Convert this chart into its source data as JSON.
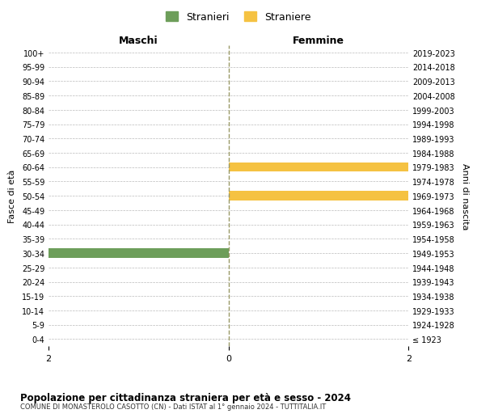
{
  "age_groups": [
    "100+",
    "95-99",
    "90-94",
    "85-89",
    "80-84",
    "75-79",
    "70-74",
    "65-69",
    "60-64",
    "55-59",
    "50-54",
    "45-49",
    "40-44",
    "35-39",
    "30-34",
    "25-29",
    "20-24",
    "15-19",
    "10-14",
    "5-9",
    "0-4"
  ],
  "birth_years": [
    "≤ 1923",
    "1924-1928",
    "1929-1933",
    "1934-1938",
    "1939-1943",
    "1944-1948",
    "1949-1953",
    "1954-1958",
    "1959-1963",
    "1964-1968",
    "1969-1973",
    "1974-1978",
    "1979-1983",
    "1984-1988",
    "1989-1993",
    "1994-1998",
    "1999-2003",
    "2004-2008",
    "2009-2013",
    "2014-2018",
    "2019-2023"
  ],
  "males": [
    0,
    0,
    0,
    0,
    0,
    0,
    0,
    0,
    0,
    0,
    0,
    0,
    0,
    0,
    2,
    0,
    0,
    0,
    0,
    0,
    0
  ],
  "females": [
    0,
    0,
    0,
    0,
    0,
    0,
    0,
    0,
    2,
    0,
    2,
    0,
    0,
    0,
    0,
    0,
    0,
    0,
    0,
    0,
    0
  ],
  "male_color": "#6d9e5a",
  "female_color": "#f5c242",
  "title": "Popolazione per cittadinanza straniera per età e sesso - 2024",
  "subtitle": "COMUNE DI MONASTEROLO CASOTTO (CN) - Dati ISTAT al 1° gennaio 2024 - TUTTITALIA.IT",
  "legend_male": "Stranieri",
  "legend_female": "Straniere",
  "xlabel_left": "Maschi",
  "xlabel_right": "Femmine",
  "ylabel_left": "Fasce di età",
  "ylabel_right": "Anni di nascita",
  "xlim": 2,
  "background_color": "#ffffff",
  "grid_color": "#bbbbbb",
  "dashed_line_color": "#999966"
}
